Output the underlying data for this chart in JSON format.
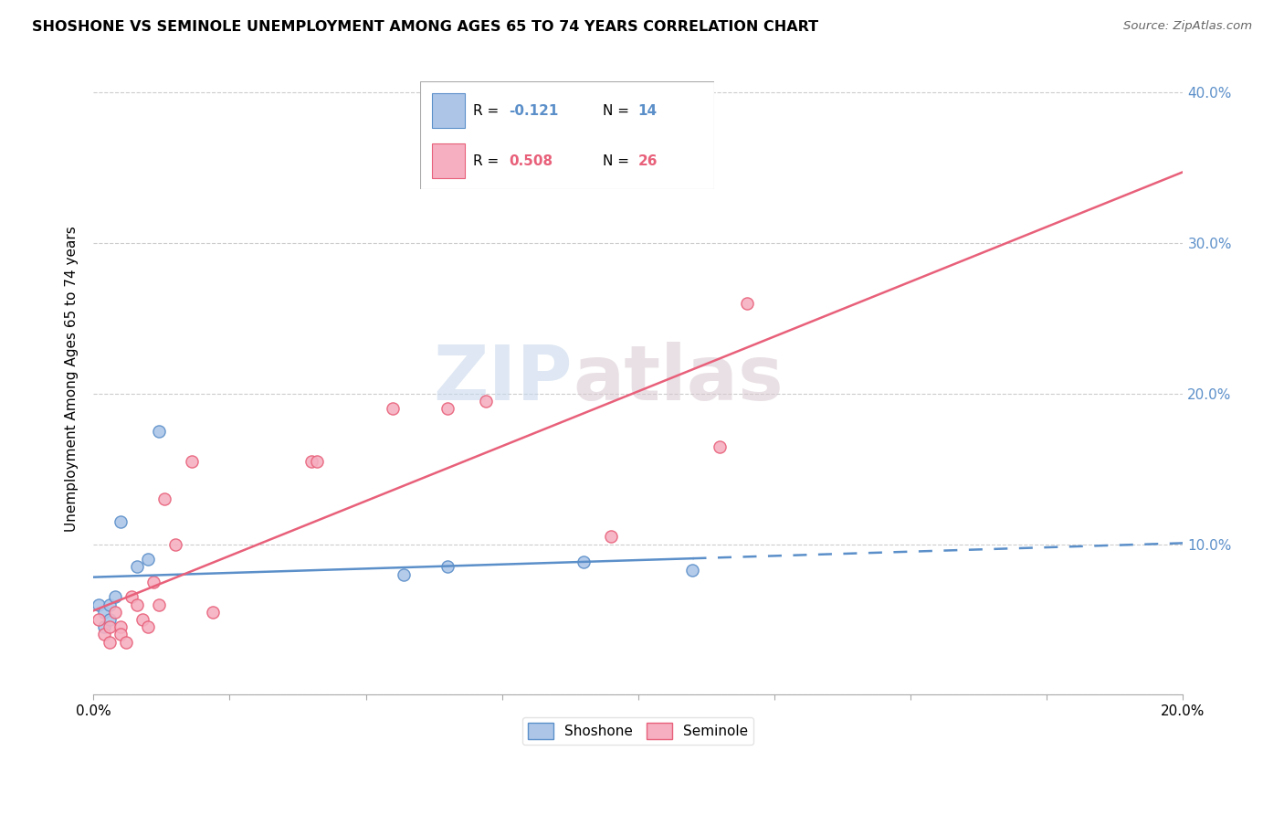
{
  "title": "SHOSHONE VS SEMINOLE UNEMPLOYMENT AMONG AGES 65 TO 74 YEARS CORRELATION CHART",
  "source": "Source: ZipAtlas.com",
  "ylabel": "Unemployment Among Ages 65 to 74 years",
  "xlim": [
    0.0,
    0.2
  ],
  "ylim": [
    0.0,
    0.42
  ],
  "xticks": [
    0.0,
    0.025,
    0.05,
    0.075,
    0.1,
    0.125,
    0.15,
    0.175,
    0.2
  ],
  "yticks": [
    0.0,
    0.1,
    0.2,
    0.3,
    0.4
  ],
  "ytick_labels_right": [
    "",
    "10.0%",
    "20.0%",
    "30.0%",
    "40.0%"
  ],
  "shoshone_color": "#adc6e8",
  "seminole_color": "#f5afc0",
  "shoshone_line_color": "#5b8fc9",
  "seminole_line_color": "#e8607a",
  "watermark_zip": "ZIP",
  "watermark_atlas": "atlas",
  "legend_R_shoshone": "-0.121",
  "legend_N_shoshone": "14",
  "legend_R_seminole": "0.508",
  "legend_N_seminole": "26",
  "shoshone_x": [
    0.001,
    0.002,
    0.002,
    0.003,
    0.003,
    0.004,
    0.005,
    0.008,
    0.01,
    0.012,
    0.057,
    0.065,
    0.09,
    0.11
  ],
  "shoshone_y": [
    0.06,
    0.055,
    0.045,
    0.05,
    0.06,
    0.065,
    0.115,
    0.085,
    0.09,
    0.175,
    0.08,
    0.085,
    0.088,
    0.083
  ],
  "seminole_x": [
    0.001,
    0.002,
    0.003,
    0.003,
    0.004,
    0.005,
    0.005,
    0.006,
    0.007,
    0.008,
    0.009,
    0.01,
    0.011,
    0.012,
    0.013,
    0.015,
    0.018,
    0.022,
    0.04,
    0.041,
    0.055,
    0.065,
    0.072,
    0.095,
    0.115,
    0.12
  ],
  "seminole_y": [
    0.05,
    0.04,
    0.035,
    0.045,
    0.055,
    0.045,
    0.04,
    0.035,
    0.065,
    0.06,
    0.05,
    0.045,
    0.075,
    0.06,
    0.13,
    0.1,
    0.155,
    0.055,
    0.155,
    0.155,
    0.19,
    0.19,
    0.195,
    0.105,
    0.165,
    0.26
  ],
  "marker_size": 90
}
